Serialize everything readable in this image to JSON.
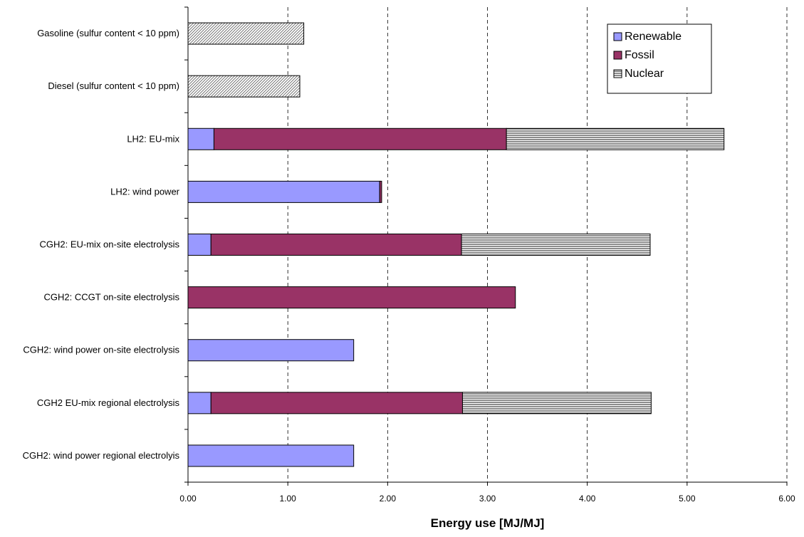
{
  "chart_data": {
    "type": "bar",
    "orientation": "horizontal",
    "stacked": true,
    "title": "",
    "xlabel": "Energy use [MJ/MJ]",
    "ylabel": "",
    "xlim": [
      0,
      6
    ],
    "xticks": [
      "0.00",
      "1.00",
      "2.00",
      "3.00",
      "4.00",
      "5.00",
      "6.00"
    ],
    "grid": "vertical dashed",
    "legend_position": "top-right",
    "categories": [
      "Gasoline (sulfur content < 10 ppm)",
      "Diesel (sulfur content < 10 ppm)",
      "LH2: EU-mix",
      "LH2: wind power",
      "CGH2: EU-mix on-site electrolysis",
      "CGH2: CCGT on-site electrolysis",
      "CGH2: wind power on-site electrolysis",
      "CGH2 EU-mix regional electrolysis",
      "CGH2: wind power regional electrolyis"
    ],
    "series": [
      {
        "name": "Renewable",
        "color": "#9999ff",
        "pattern": "solid",
        "values": [
          0,
          0,
          0.26,
          1.92,
          0.23,
          0,
          1.66,
          0.23,
          1.66
        ]
      },
      {
        "name": "Fossil",
        "color": "#993366",
        "pattern": "solid",
        "values": [
          0,
          0,
          2.93,
          0.02,
          2.51,
          3.28,
          0,
          2.52,
          0
        ]
      },
      {
        "name": "Nuclear",
        "color": "#ffffff",
        "pattern": "horizontal-lines",
        "values": [
          0,
          0,
          2.18,
          0,
          1.89,
          0,
          0,
          1.89,
          0
        ]
      },
      {
        "name": "",
        "color": "#ffffff",
        "pattern": "diagonal-hatch",
        "values": [
          1.16,
          1.12,
          0,
          0,
          0,
          0,
          0,
          0,
          0
        ]
      }
    ]
  }
}
